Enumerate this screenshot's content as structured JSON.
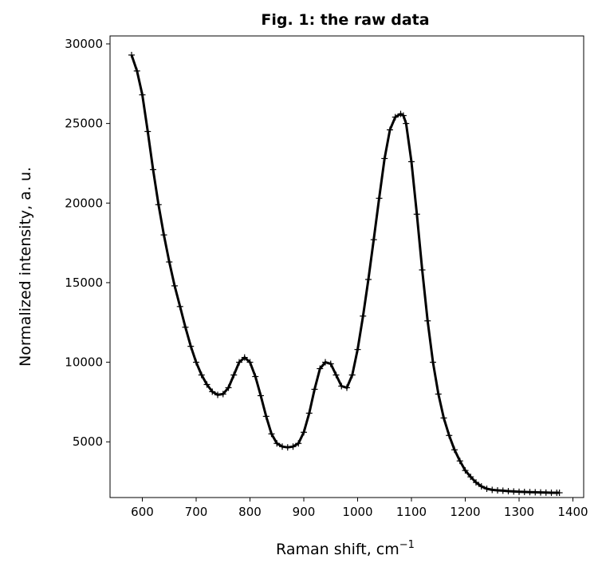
{
  "chart_data": {
    "type": "line",
    "title": "Fig. 1: the raw data",
    "xlabel": "Raman shift, cm",
    "xlabel_superscript": "−1",
    "ylabel": "Normalized intensity, a. u.",
    "xlim": [
      540,
      1420
    ],
    "ylim": [
      1500,
      30500
    ],
    "xticks": [
      600,
      700,
      800,
      900,
      1000,
      1100,
      1200,
      1300,
      1400
    ],
    "yticks": [
      5000,
      10000,
      15000,
      20000,
      25000,
      30000
    ],
    "grid": false,
    "legend": "none",
    "line_color": "#000000",
    "marker": "+",
    "series": [
      {
        "x": [
          580,
          590,
          600,
          610,
          620,
          630,
          640,
          650,
          660,
          670,
          680,
          690,
          700,
          710,
          720,
          730,
          740,
          750,
          760,
          770,
          780,
          790,
          800,
          810,
          820,
          830,
          840,
          850,
          860,
          870,
          880,
          890,
          900,
          910,
          920,
          930,
          940,
          950,
          960,
          970,
          980,
          990,
          1000,
          1010,
          1020,
          1030,
          1040,
          1050,
          1060,
          1070,
          1080,
          1085,
          1090,
          1100,
          1110,
          1120,
          1130,
          1140,
          1150,
          1160,
          1170,
          1180,
          1190,
          1200,
          1210,
          1220,
          1230,
          1240,
          1250,
          1260,
          1270,
          1280,
          1290,
          1300,
          1310,
          1320,
          1330,
          1340,
          1350,
          1360,
          1370,
          1375
        ],
        "y": [
          29300,
          28300,
          26800,
          24500,
          22100,
          19900,
          18000,
          16300,
          14800,
          13500,
          12200,
          11000,
          10000,
          9200,
          8600,
          8150,
          7950,
          8000,
          8400,
          9200,
          10000,
          10300,
          10000,
          9100,
          7900,
          6600,
          5500,
          4900,
          4700,
          4650,
          4700,
          4900,
          5600,
          6800,
          8300,
          9600,
          10000,
          9900,
          9200,
          8500,
          8400,
          9200,
          10800,
          12900,
          15200,
          17700,
          20300,
          22800,
          24600,
          25400,
          25600,
          25500,
          25000,
          22600,
          19300,
          15800,
          12600,
          10000,
          8000,
          6500,
          5400,
          4500,
          3800,
          3200,
          2800,
          2450,
          2200,
          2050,
          1980,
          1950,
          1930,
          1900,
          1880,
          1860,
          1850,
          1840,
          1830,
          1820,
          1810,
          1800,
          1800,
          1800
        ]
      }
    ]
  }
}
